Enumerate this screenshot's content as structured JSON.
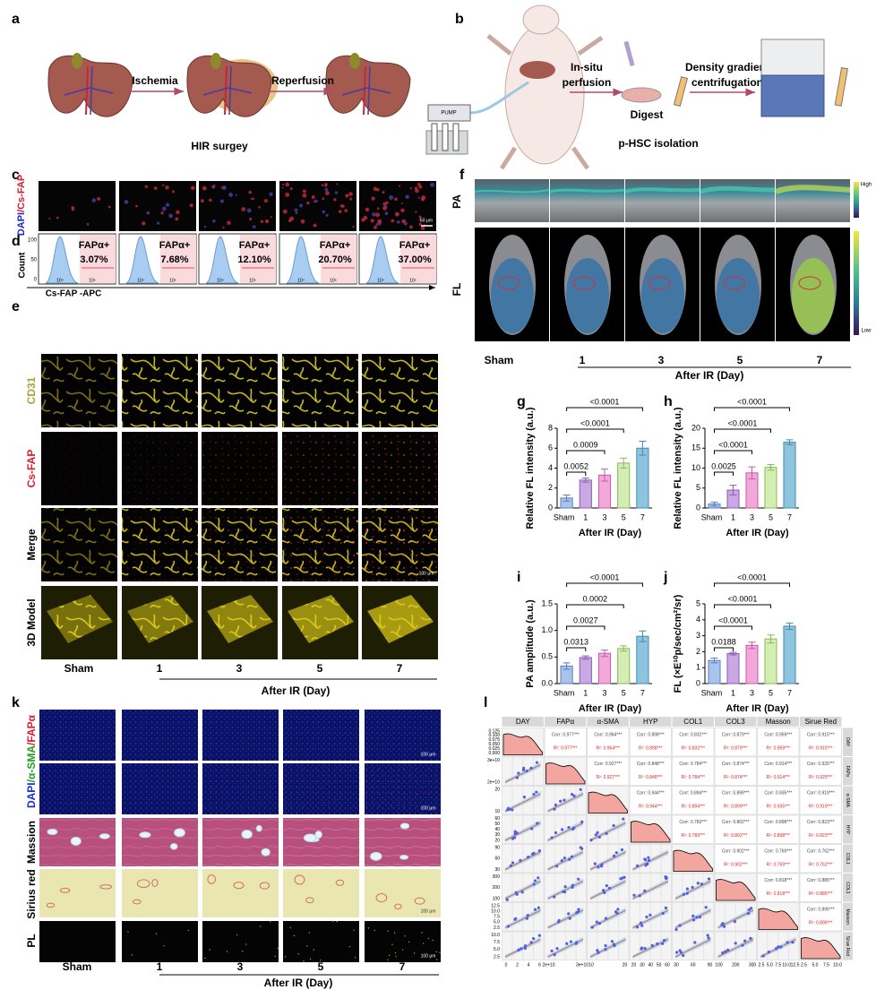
{
  "a": {
    "label": "a",
    "steps": [
      "Ischemia",
      "Reperfusion"
    ],
    "caption": "HIR surgey"
  },
  "b": {
    "label": "b",
    "pump": "PUMP",
    "steps": [
      [
        "In-situ",
        "perfusion"
      ],
      [
        "Density gradient",
        "centrifugation"
      ]
    ],
    "digest": "Digest",
    "caption": "p-HSC isolation"
  },
  "c": {
    "label": "c",
    "stain": [
      "DAPI",
      "/Cs-FAP"
    ],
    "scale_bar": "50 μm"
  },
  "d": {
    "label": "d",
    "gate": "FAPα+",
    "percents": [
      "3.07%",
      "7.68%",
      "12.10%",
      "20.70%",
      "37.00%"
    ],
    "y_axis": "Count",
    "x_axis": "Cs-FAP -APC",
    "yticks": [
      "100",
      "50",
      "0"
    ],
    "xticks": [
      "10⁴",
      "10⁶"
    ]
  },
  "e": {
    "label": "e",
    "rows": [
      "CD31",
      "Cs-FAP",
      "Merge",
      "3D Model"
    ],
    "columns": [
      "Sham",
      "1",
      "3",
      "5",
      "7"
    ],
    "x_axis": "After IR (Day)",
    "scale_bar": "100 μm"
  },
  "f": {
    "label": "f",
    "rows": [
      "PA",
      "FL"
    ],
    "colorbar": [
      "High",
      "Low"
    ],
    "columns": [
      "Sham",
      "1",
      "3",
      "5",
      "7"
    ],
    "x_axis": "After IR (Day)"
  },
  "chart_data": [
    {
      "type": "bar",
      "label": "g",
      "y_label": "Relative FL intensity (a.u.)",
      "x_label": "After IR (Day)",
      "categories": [
        "Sham",
        "1",
        "3",
        "5",
        "7"
      ],
      "values": [
        1.0,
        2.8,
        3.3,
        4.5,
        6.0
      ],
      "errors": [
        0.3,
        0.2,
        0.6,
        0.5,
        0.7
      ],
      "colors": [
        "#a9c4ea",
        "#c9a8e4",
        "#f3a8da",
        "#d4edb3",
        "#8fc4de"
      ],
      "edge_colors": [
        "#5b7fc0",
        "#8a5cb8",
        "#c85aa8",
        "#8ab85a",
        "#3f8cb0"
      ],
      "ylim": [
        0,
        8
      ],
      "yticks": [
        0,
        2,
        4,
        6,
        8
      ],
      "p_values": [
        "0.0052",
        "0.0009",
        "<0.0001",
        "<0.0001"
      ]
    },
    {
      "type": "bar",
      "label": "h",
      "y_label": "Relative FL intensity (a.u.)",
      "x_label": "After IR (Day)",
      "categories": [
        "Sham",
        "1",
        "3",
        "5",
        "7"
      ],
      "values": [
        1.0,
        4.5,
        8.8,
        10.2,
        16.5
      ],
      "errors": [
        0.5,
        1.2,
        1.5,
        0.7,
        0.6
      ],
      "colors": [
        "#a9c4ea",
        "#c9a8e4",
        "#f3a8da",
        "#d4edb3",
        "#8fc4de"
      ],
      "edge_colors": [
        "#5b7fc0",
        "#8a5cb8",
        "#c85aa8",
        "#8ab85a",
        "#3f8cb0"
      ],
      "ylim": [
        0,
        20
      ],
      "yticks": [
        0,
        5,
        10,
        15,
        20
      ],
      "p_values": [
        "0.0025",
        "<0.0001",
        "<0.0001",
        "<0.0001"
      ]
    },
    {
      "type": "bar",
      "label": "i",
      "y_label": "PA amplitude (a.u.)",
      "x_label": "After IR (Day)",
      "categories": [
        "Sham",
        "1",
        "3",
        "5",
        "7"
      ],
      "values": [
        0.33,
        0.49,
        0.57,
        0.66,
        0.89
      ],
      "errors": [
        0.06,
        0.03,
        0.06,
        0.05,
        0.1
      ],
      "colors": [
        "#a9c4ea",
        "#c9a8e4",
        "#f3a8da",
        "#d4edb3",
        "#8fc4de"
      ],
      "edge_colors": [
        "#5b7fc0",
        "#8a5cb8",
        "#c85aa8",
        "#8ab85a",
        "#3f8cb0"
      ],
      "ylim": [
        0,
        1.5
      ],
      "yticks": [
        {
          "value": 0,
          "label": "0.0"
        },
        0.5,
        {
          "value": 1,
          "label": "1.0"
        },
        1.5
      ],
      "p_values": [
        "0.0313",
        "0.0027",
        "0.0002",
        "<0.0001"
      ]
    },
    {
      "type": "bar",
      "label": "j",
      "y_label": "FL (×E¹⁰p/sec/cm²/sr)",
      "x_label": "After IR (Day)",
      "categories": [
        "Sham",
        "1",
        "3",
        "5",
        "7"
      ],
      "values": [
        1.45,
        1.88,
        2.4,
        2.8,
        3.6
      ],
      "errors": [
        0.15,
        0.08,
        0.2,
        0.25,
        0.2
      ],
      "colors": [
        "#a9c4ea",
        "#c9a8e4",
        "#f3a8da",
        "#d4edb3",
        "#8fc4de"
      ],
      "edge_colors": [
        "#5b7fc0",
        "#8a5cb8",
        "#c85aa8",
        "#8ab85a",
        "#3f8cb0"
      ],
      "ylim": [
        0,
        5
      ],
      "yticks": [
        0,
        1,
        2,
        3,
        4,
        5
      ],
      "p_values": [
        "0.0188",
        "<0.0001",
        "<0.0001",
        "<0.0001"
      ]
    }
  ],
  "k": {
    "label": "k",
    "rows": [
      [
        "DAPI",
        "/α-SMA",
        "/FAPα"
      ],
      "Massion",
      "Sirius red",
      "PL"
    ],
    "columns": [
      "Sham",
      "1",
      "3",
      "5",
      "7"
    ],
    "x_axis": "After IR (Day)",
    "scale_bar": "100 μm"
  },
  "l": {
    "label": "l",
    "variables": [
      "DAY",
      "FAPα",
      "α-SMA",
      "HYP",
      "COL1",
      "COL3",
      "Masson",
      "Sirue Red"
    ],
    "side_labels": [
      "DAY",
      "FAPα",
      "α-SMA",
      "HYP",
      "COL1",
      "COL3",
      "Masson",
      "Sirue Red"
    ],
    "corr": [
      [
        "Corr: 0.977***",
        "Corr: 0.964***",
        "Corr: 0.898***",
        "Corr: 0.832***",
        "Corr: 0.879***",
        "Corr: 0.959***",
        "Corr: 0.915***"
      ],
      [
        "Corr: 0.927***",
        "Corr: 0.848***",
        "Corr: 0.784***",
        "Corr: 0.874***",
        "Corr: 0.914***",
        "Corr: 0.925***"
      ],
      [
        "Corr: 0.944***",
        "Corr: 0.894***",
        "Corr: 0.899***",
        "Corr: 0.935***",
        "Corr: 0.919***"
      ],
      [
        "Corr: 0.783***",
        "Corr: 0.802***",
        "Corr: 0.898***",
        "Corr: 0.823***"
      ],
      [
        "Corr: 0.902***",
        "Corr: 0.769***",
        "Corr: 0.762***"
      ],
      [
        "Corr: 0.818***",
        "Corr: 0.885***"
      ],
      [
        "Corr: 0.895***"
      ]
    ],
    "r2": [
      [
        "R²: 0.977***",
        "R²: 0.964***",
        "R²: 0.898***",
        "R²: 0.832***",
        "R²: 0.879***",
        "R²: 0.959***",
        "R²: 0.915***"
      ],
      [
        "R²: 0.927***",
        "R²: 0.848***",
        "R²: 0.784***",
        "R²: 0.874***",
        "R²: 0.914***",
        "R²: 0.925***"
      ],
      [
        "R²: 0.944***",
        "R²: 0.894***",
        "R²: 0.899***",
        "R²: 0.935***",
        "R²: 0.919***"
      ],
      [
        "R²: 0.783***",
        "R²: 0.802***",
        "R²: 0.898***",
        "R²: 0.823***"
      ],
      [
        "R²: 0.902***",
        "R²: 0.769***",
        "R²: 0.762***"
      ],
      [
        "R²: 0.818***",
        "R²: 0.885***"
      ],
      [
        "R²: 0.895***"
      ]
    ],
    "yticks": [
      [
        "0.125",
        "0.100",
        "0.075",
        "0.050",
        "0.025",
        "0.000"
      ],
      [
        "3e+10",
        "2e+10"
      ],
      [
        "20",
        "10"
      ],
      [
        "60",
        "50",
        "40",
        "30",
        "20"
      ],
      [
        "90",
        "60",
        "30"
      ],
      [
        "300",
        "200",
        "100"
      ],
      [
        "12.5",
        "10.0",
        "7.5",
        "5.0",
        "2.5"
      ],
      [
        "10.0",
        "7.5",
        "5.0",
        "2.5"
      ]
    ],
    "xticks": [
      [
        "0",
        "2",
        "4",
        "6"
      ],
      [
        "2e+10",
        "3e+10"
      ],
      [
        "10",
        "20"
      ],
      [
        "20",
        "30",
        "40",
        "50",
        "60"
      ],
      [
        "30",
        "60",
        "90"
      ],
      [
        "100",
        "200",
        "300"
      ],
      [
        "2.5",
        "5.0",
        "7.5",
        "10.0",
        "12.5"
      ],
      [
        "2.5",
        "5.0",
        "7.5",
        "10.0"
      ]
    ]
  }
}
